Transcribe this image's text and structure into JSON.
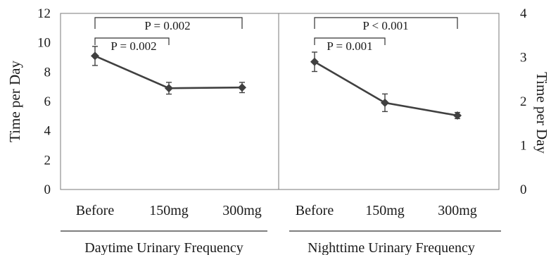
{
  "chart_data": [
    {
      "type": "line",
      "group_label": "Daytime Urinary Frequency",
      "ylabel": "Time per Day",
      "ylim": [
        0,
        12
      ],
      "yticks": [
        "0",
        "2",
        "4",
        "6",
        "8",
        "10",
        "12"
      ],
      "categories": [
        "Before",
        "150mg",
        "300mg"
      ],
      "values": [
        9.1,
        6.9,
        6.95
      ],
      "errors": [
        0.65,
        0.4,
        0.35
      ],
      "comparisons": [
        {
          "from": 0,
          "to": 1,
          "label": "P = 0.002"
        },
        {
          "from": 0,
          "to": 2,
          "label": "P = 0.002"
        }
      ]
    },
    {
      "type": "line",
      "group_label": "Nighttime Urinary Frequency",
      "ylabel": "Time per Day",
      "ylim": [
        0,
        4
      ],
      "yticks": [
        "0",
        "1",
        "2",
        "3",
        "4"
      ],
      "categories": [
        "Before",
        "150mg",
        "300mg"
      ],
      "values": [
        2.9,
        1.97,
        1.68
      ],
      "errors": [
        0.22,
        0.2,
        0.07
      ],
      "comparisons": [
        {
          "from": 0,
          "to": 1,
          "label": "P = 0.001"
        },
        {
          "from": 0,
          "to": 2,
          "label": "P < 0.001"
        }
      ]
    }
  ]
}
